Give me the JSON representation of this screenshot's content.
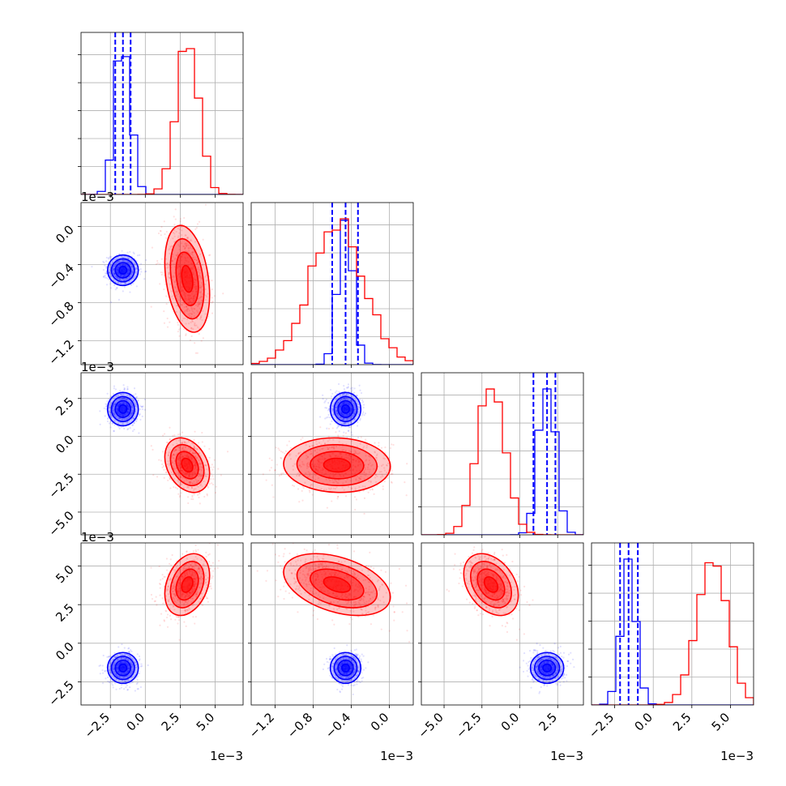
{
  "chart_data": {
    "type": "corner",
    "parameters": [
      {
        "ticks": [
          -2.5,
          0.0,
          2.5,
          5.0
        ],
        "tick_labels": [
          "−2.5",
          "0.0",
          "2.5",
          "5.0"
        ],
        "range": [
          -4.6,
          7.0
        ],
        "offset_label": "1e−3"
      },
      {
        "ticks": [
          -1.2,
          -0.8,
          -0.4,
          0.0
        ],
        "tick_labels": [
          "−1.2",
          "−0.8",
          "−0.4",
          "0.0"
        ],
        "range": [
          -1.45,
          0.25
        ],
        "offset_label": "1e−3"
      },
      {
        "ticks": [
          -5.0,
          -2.5,
          0.0,
          2.5
        ],
        "tick_labels": [
          "−5.0",
          "−2.5",
          "0.0",
          "2.5"
        ],
        "range": [
          -6.5,
          4.2
        ],
        "offset_label": "1e−3"
      },
      {
        "ticks": [
          -2.5,
          0.0,
          2.5,
          5.0
        ],
        "tick_labels": [
          "−2.5",
          "0.0",
          "2.5",
          "5.0"
        ],
        "range": [
          -4.0,
          6.5
        ],
        "offset_label": "1e−3"
      }
    ],
    "series": [
      {
        "color": "#0000ff",
        "means": [
          -1.6,
          -0.46,
          1.8,
          -1.6
        ],
        "sigmas": [
          0.55,
          0.08,
          0.55,
          0.5
        ],
        "quantiles": [
          [
            -2.15,
            -1.6,
            -1.05
          ],
          [
            -0.6,
            -0.46,
            -0.33
          ],
          [
            0.9,
            1.8,
            2.35
          ],
          [
            -2.15,
            -1.6,
            -1.0
          ]
        ],
        "correlations": {
          "1-0": 0.0,
          "2-0": 0.0,
          "2-1": 0.0,
          "3-0": 0.0,
          "3-1": 0.0,
          "3-2": 0.0
        }
      },
      {
        "color": "#ff0000",
        "means": [
          3.0,
          -0.55,
          -1.9,
          3.8
        ],
        "sigmas": [
          0.8,
          0.28,
          0.9,
          1.0
        ],
        "quantiles": [],
        "correlations": {
          "1-0": -0.3,
          "2-0": -0.3,
          "2-1": -0.05,
          "3-0": 0.3,
          "3-1": -0.4,
          "3-2": -0.35
        }
      }
    ],
    "grid": true,
    "contour_levels": [
      0.5,
      1.0,
      1.5,
      2.0
    ]
  }
}
